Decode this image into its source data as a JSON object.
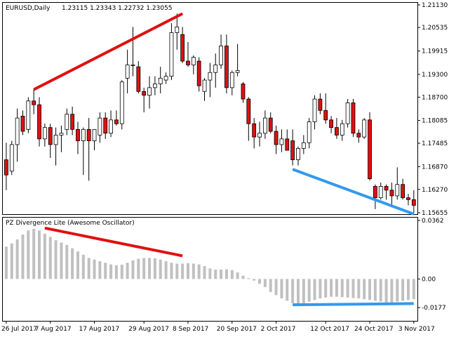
{
  "price_header": {
    "symbol": "EURUSD,Daily",
    "ohlc": "1.23115 1.23343 1.22732 1.23055"
  },
  "indicator_header": {
    "title": "PZ Divergence Lite (Awesome Oscillator)"
  },
  "colors": {
    "bull_body": "#ffffff",
    "bear_body": "#e01010",
    "candle_outline": "#000000",
    "bearish_divergence": "#e01010",
    "bullish_divergence": "#3399ee",
    "histogram": "#c0c0c0"
  },
  "chart_data": [
    {
      "type": "candlestick",
      "series_name": "EURUSD Daily",
      "y_ticks": [
        "1.21130",
        "1.20535",
        "1.19915",
        "1.19300",
        "1.18700",
        "1.18085",
        "1.17485",
        "1.16870",
        "1.16270",
        "1.15655"
      ],
      "ylim": [
        1.15655,
        1.2113
      ],
      "x_ticks": [
        "26 Jul 2017",
        "7 Aug 2017",
        "17 Aug 2017",
        "29 Aug 2017",
        "8 Sep 2017",
        "20 Sep 2017",
        "2 Oct 2017",
        "12 Oct 2017",
        "24 Oct 2017",
        "3 Nov 2017"
      ],
      "candles": [
        {
          "o": 1.1705,
          "h": 1.175,
          "l": 1.1625,
          "c": 1.1665
        },
        {
          "o": 1.1675,
          "h": 1.1755,
          "l": 1.1665,
          "c": 1.1745
        },
        {
          "o": 1.1745,
          "h": 1.184,
          "l": 1.17,
          "c": 1.1815
        },
        {
          "o": 1.182,
          "h": 1.1835,
          "l": 1.177,
          "c": 1.178
        },
        {
          "o": 1.1785,
          "h": 1.187,
          "l": 1.1775,
          "c": 1.186
        },
        {
          "o": 1.186,
          "h": 1.189,
          "l": 1.1825,
          "c": 1.185
        },
        {
          "o": 1.185,
          "h": 1.187,
          "l": 1.174,
          "c": 1.176
        },
        {
          "o": 1.176,
          "h": 1.18,
          "l": 1.174,
          "c": 1.179
        },
        {
          "o": 1.179,
          "h": 1.18,
          "l": 1.171,
          "c": 1.1745
        },
        {
          "o": 1.1745,
          "h": 1.179,
          "l": 1.169,
          "c": 1.177
        },
        {
          "o": 1.177,
          "h": 1.1795,
          "l": 1.1725,
          "c": 1.1775
        },
        {
          "o": 1.1785,
          "h": 1.184,
          "l": 1.177,
          "c": 1.1825
        },
        {
          "o": 1.1825,
          "h": 1.1845,
          "l": 1.177,
          "c": 1.1785
        },
        {
          "o": 1.1785,
          "h": 1.1805,
          "l": 1.172,
          "c": 1.1755
        },
        {
          "o": 1.1755,
          "h": 1.179,
          "l": 1.1665,
          "c": 1.1785
        },
        {
          "o": 1.1785,
          "h": 1.1815,
          "l": 1.165,
          "c": 1.1755
        },
        {
          "o": 1.1755,
          "h": 1.1785,
          "l": 1.173,
          "c": 1.1785
        },
        {
          "o": 1.177,
          "h": 1.183,
          "l": 1.175,
          "c": 1.1815
        },
        {
          "o": 1.1815,
          "h": 1.183,
          "l": 1.176,
          "c": 1.1775
        },
        {
          "o": 1.1775,
          "h": 1.1835,
          "l": 1.1765,
          "c": 1.181
        },
        {
          "o": 1.181,
          "h": 1.1835,
          "l": 1.1795,
          "c": 1.18
        },
        {
          "o": 1.18,
          "h": 1.1915,
          "l": 1.1785,
          "c": 1.191
        },
        {
          "o": 1.192,
          "h": 1.1995,
          "l": 1.188,
          "c": 1.1955
        },
        {
          "o": 1.1955,
          "h": 1.2055,
          "l": 1.1925,
          "c": 1.1955
        },
        {
          "o": 1.195,
          "h": 1.1965,
          "l": 1.188,
          "c": 1.1885
        },
        {
          "o": 1.1885,
          "h": 1.1895,
          "l": 1.183,
          "c": 1.1875
        },
        {
          "o": 1.1875,
          "h": 1.1925,
          "l": 1.184,
          "c": 1.1895
        },
        {
          "o": 1.1895,
          "h": 1.1925,
          "l": 1.1875,
          "c": 1.1905
        },
        {
          "o": 1.1905,
          "h": 1.195,
          "l": 1.188,
          "c": 1.192
        },
        {
          "o": 1.1915,
          "h": 1.1935,
          "l": 1.1905,
          "c": 1.1925
        },
        {
          "o": 1.1925,
          "h": 1.2065,
          "l": 1.1915,
          "c": 1.204
        },
        {
          "o": 1.204,
          "h": 1.209,
          "l": 1.1995,
          "c": 1.2055
        },
        {
          "o": 1.2035,
          "h": 1.2055,
          "l": 1.196,
          "c": 1.1965
        },
        {
          "o": 1.1965,
          "h": 1.2015,
          "l": 1.195,
          "c": 1.1955
        },
        {
          "o": 1.1955,
          "h": 1.198,
          "l": 1.193,
          "c": 1.1975
        },
        {
          "o": 1.1965,
          "h": 1.1975,
          "l": 1.1885,
          "c": 1.19
        },
        {
          "o": 1.1885,
          "h": 1.192,
          "l": 1.186,
          "c": 1.1915
        },
        {
          "o": 1.1915,
          "h": 1.196,
          "l": 1.187,
          "c": 1.1935
        },
        {
          "o": 1.1935,
          "h": 1.1985,
          "l": 1.1895,
          "c": 1.1955
        },
        {
          "o": 1.1955,
          "h": 1.2035,
          "l": 1.1945,
          "c": 1.2005
        },
        {
          "o": 1.2005,
          "h": 1.2035,
          "l": 1.188,
          "c": 1.1895
        },
        {
          "o": 1.1895,
          "h": 1.194,
          "l": 1.1875,
          "c": 1.1935
        },
        {
          "o": 1.1935,
          "h": 1.201,
          "l": 1.1925,
          "c": 1.194
        },
        {
          "o": 1.1905,
          "h": 1.191,
          "l": 1.1855,
          "c": 1.1865
        },
        {
          "o": 1.1865,
          "h": 1.187,
          "l": 1.1755,
          "c": 1.18
        },
        {
          "o": 1.18,
          "h": 1.1815,
          "l": 1.1735,
          "c": 1.1765
        },
        {
          "o": 1.1765,
          "h": 1.1805,
          "l": 1.174,
          "c": 1.1775
        },
        {
          "o": 1.1775,
          "h": 1.1835,
          "l": 1.176,
          "c": 1.1815
        },
        {
          "o": 1.1815,
          "h": 1.183,
          "l": 1.1775,
          "c": 1.178
        },
        {
          "o": 1.178,
          "h": 1.1795,
          "l": 1.172,
          "c": 1.1745
        },
        {
          "o": 1.1745,
          "h": 1.1785,
          "l": 1.1725,
          "c": 1.176
        },
        {
          "o": 1.176,
          "h": 1.1785,
          "l": 1.173,
          "c": 1.173
        },
        {
          "o": 1.1755,
          "h": 1.1785,
          "l": 1.169,
          "c": 1.1705
        },
        {
          "o": 1.1705,
          "h": 1.174,
          "l": 1.169,
          "c": 1.1735
        },
        {
          "o": 1.1735,
          "h": 1.177,
          "l": 1.172,
          "c": 1.175
        },
        {
          "o": 1.175,
          "h": 1.1815,
          "l": 1.1735,
          "c": 1.1805
        },
        {
          "o": 1.1805,
          "h": 1.1875,
          "l": 1.1785,
          "c": 1.1865
        },
        {
          "o": 1.1865,
          "h": 1.188,
          "l": 1.1825,
          "c": 1.1835
        },
        {
          "o": 1.1835,
          "h": 1.188,
          "l": 1.18,
          "c": 1.181
        },
        {
          "o": 1.181,
          "h": 1.182,
          "l": 1.1775,
          "c": 1.179
        },
        {
          "o": 1.179,
          "h": 1.1815,
          "l": 1.176,
          "c": 1.177
        },
        {
          "o": 1.177,
          "h": 1.181,
          "l": 1.1755,
          "c": 1.18
        },
        {
          "o": 1.18,
          "h": 1.1865,
          "l": 1.179,
          "c": 1.1855
        },
        {
          "o": 1.1855,
          "h": 1.1865,
          "l": 1.1765,
          "c": 1.1775
        },
        {
          "o": 1.1775,
          "h": 1.1785,
          "l": 1.175,
          "c": 1.1765
        },
        {
          "o": 1.1765,
          "h": 1.1815,
          "l": 1.176,
          "c": 1.181
        },
        {
          "o": 1.181,
          "h": 1.183,
          "l": 1.165,
          "c": 1.1655
        },
        {
          "o": 1.1635,
          "h": 1.164,
          "l": 1.1575,
          "c": 1.1605
        },
        {
          "o": 1.1605,
          "h": 1.1645,
          "l": 1.16,
          "c": 1.1635
        },
        {
          "o": 1.1635,
          "h": 1.164,
          "l": 1.16,
          "c": 1.1625
        },
        {
          "o": 1.1625,
          "h": 1.1645,
          "l": 1.1585,
          "c": 1.161
        },
        {
          "o": 1.161,
          "h": 1.1685,
          "l": 1.16,
          "c": 1.164
        },
        {
          "o": 1.164,
          "h": 1.1655,
          "l": 1.16,
          "c": 1.1605
        },
        {
          "o": 1.1605,
          "h": 1.1615,
          "l": 1.1585,
          "c": 1.16
        },
        {
          "o": 1.16,
          "h": 1.1625,
          "l": 1.1565,
          "c": 1.1585
        }
      ],
      "divergence_lines": [
        {
          "name": "bearish",
          "from": {
            "bar": 5,
            "value": 1.189
          },
          "to": {
            "bar": 32,
            "value": 1.209
          }
        },
        {
          "name": "bullish",
          "from": {
            "bar": 52,
            "value": 1.168
          },
          "to": {
            "bar": 74,
            "value": 1.1562
          }
        }
      ]
    },
    {
      "type": "bar",
      "series_name": "Awesome Oscillator",
      "y_ticks": [
        "0.0362",
        "0.00",
        "-0.0177"
      ],
      "ylim": [
        -0.022,
        0.0362
      ],
      "values": [
        0.02,
        0.022,
        0.0245,
        0.0275,
        0.03,
        0.031,
        0.03,
        0.028,
        0.026,
        0.024,
        0.0225,
        0.021,
        0.019,
        0.017,
        0.015,
        0.013,
        0.012,
        0.011,
        0.01,
        0.009,
        0.0085,
        0.0088,
        0.01,
        0.0115,
        0.0125,
        0.013,
        0.013,
        0.0128,
        0.012,
        0.011,
        0.01,
        0.0095,
        0.0095,
        0.0098,
        0.0095,
        0.009,
        0.008,
        0.0065,
        0.0058,
        0.0058,
        0.006,
        0.0055,
        0.004,
        0.002,
        0.0005,
        -0.001,
        -0.003,
        -0.005,
        -0.008,
        -0.01,
        -0.012,
        -0.0135,
        -0.015,
        -0.0155,
        -0.015,
        -0.014,
        -0.013,
        -0.012,
        -0.0115,
        -0.011,
        -0.011,
        -0.0112,
        -0.0115,
        -0.0118,
        -0.012,
        -0.0125,
        -0.013,
        -0.0135,
        -0.014,
        -0.0145,
        -0.0145,
        -0.014,
        -0.0135,
        -0.013,
        -0.0125
      ],
      "divergence_lines": [
        {
          "name": "bearish",
          "from": {
            "bar": 7,
            "value": 0.0315
          },
          "to": {
            "bar": 32,
            "value": 0.0143
          }
        },
        {
          "name": "bullish",
          "from": {
            "bar": 52,
            "value": -0.016
          },
          "to": {
            "bar": 74,
            "value": -0.0152
          }
        }
      ]
    }
  ]
}
